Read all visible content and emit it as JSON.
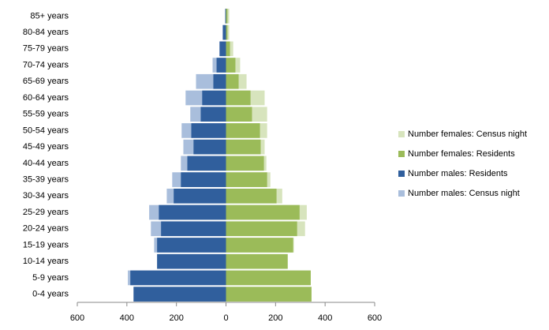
{
  "chart_data": {
    "type": "pyramid",
    "categories": [
      "0-4 years",
      "5-9 years",
      "10-14 years",
      "15-19 years",
      "20-24 years",
      "25-29 years",
      "30-34 years",
      "35-39 years",
      "40-44 years",
      "45-49 years",
      "50-54 years",
      "55-59 years",
      "60-64 years",
      "65-69 years",
      "70-74 years",
      "75-79 years",
      "80-84 years",
      "85+ years"
    ],
    "series": [
      {
        "name": "Number females: Census night",
        "color": "#d7e4bd",
        "values": [
          345,
          342,
          249,
          274,
          319,
          326,
          227,
          179,
          163,
          156,
          166,
          166,
          156,
          83,
          57,
          29,
          13,
          13
        ]
      },
      {
        "name": "Number females: Residents",
        "color": "#9bbb59",
        "values": [
          345,
          342,
          249,
          271,
          287,
          297,
          204,
          166,
          153,
          140,
          137,
          105,
          99,
          51,
          38,
          16,
          6,
          6
        ]
      },
      {
        "name": "Number males: Residents",
        "color": "#305f9d",
        "values": [
          -373,
          -386,
          -278,
          -278,
          -262,
          -271,
          -211,
          -182,
          -156,
          -131,
          -140,
          -102,
          -96,
          -51,
          -38,
          -26,
          -13,
          -3
        ]
      },
      {
        "name": "Number males: Census night",
        "color": "#a9bedc",
        "values": [
          -373,
          -396,
          -278,
          -290,
          -303,
          -310,
          -239,
          -217,
          -182,
          -172,
          -179,
          -144,
          -163,
          -121,
          -54,
          -26,
          -13,
          -3
        ]
      }
    ],
    "xlim": [
      -600,
      600
    ],
    "xticks": [
      {
        "value": -600,
        "label": "600"
      },
      {
        "value": -400,
        "label": "400"
      },
      {
        "value": -200,
        "label": "200"
      },
      0,
      200,
      400,
      600
    ],
    "legend": "right"
  }
}
